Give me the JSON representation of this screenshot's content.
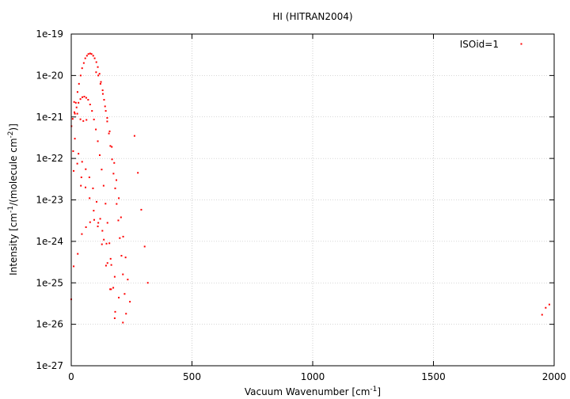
{
  "chart_data": {
    "type": "scatter",
    "title": "HI (HITRAN2004)",
    "xlabel": {
      "pre": "Vacuum Wavenumber [cm",
      "sup": "-1",
      "post": "]"
    },
    "ylabel": {
      "p1": "Intensity [cm",
      "s1": "-1",
      "p2": "/(molecule cm",
      "s2": "-2",
      "p3": ")]"
    },
    "xlim": [
      0,
      2000
    ],
    "ylim": [
      1e-27,
      1e-19
    ],
    "yscale": "log",
    "grid": true,
    "legend_position": "top-right",
    "x_ticks": [
      {
        "value": 0,
        "label": "0"
      },
      {
        "value": 500,
        "label": "500"
      },
      {
        "value": 1000,
        "label": "1000"
      },
      {
        "value": 1500,
        "label": "1500"
      },
      {
        "value": 2000,
        "label": "2000"
      }
    ],
    "y_ticks": [
      {
        "value": 1e-27,
        "label": "1e-27"
      },
      {
        "value": 1e-26,
        "label": "1e-26"
      },
      {
        "value": 1e-25,
        "label": "1e-25"
      },
      {
        "value": 1e-24,
        "label": "1e-24"
      },
      {
        "value": 1e-23,
        "label": "1e-23"
      },
      {
        "value": 1e-22,
        "label": "1e-22"
      },
      {
        "value": 1e-21,
        "label": "1e-21"
      },
      {
        "value": 1e-20,
        "label": "1e-20"
      },
      {
        "value": 1e-19,
        "label": "1e-19"
      }
    ],
    "series": [
      {
        "name": "ISOid=1",
        "color": "#ff0000",
        "points": [
          [
            0,
            4e-26
          ],
          [
            1,
            6e-22
          ],
          [
            6,
            9e-22
          ],
          [
            13,
            1.3e-21
          ],
          [
            19,
            2.2e-21
          ],
          [
            26,
            4e-21
          ],
          [
            32,
            6.3e-21
          ],
          [
            39,
            1e-20
          ],
          [
            45,
            1.5e-20
          ],
          [
            52,
            2e-20
          ],
          [
            58,
            2.6e-20
          ],
          [
            65,
            3e-20
          ],
          [
            71,
            3.3e-20
          ],
          [
            78,
            3.4e-20
          ],
          [
            84,
            3.3e-20
          ],
          [
            91,
            3e-20
          ],
          [
            97,
            2.6e-20
          ],
          [
            104,
            2.1e-20
          ],
          [
            110,
            1.6e-20
          ],
          [
            117,
            1.1e-20
          ],
          [
            123,
            7e-21
          ],
          [
            130,
            4.4e-21
          ],
          [
            136,
            2.6e-21
          ],
          [
            143,
            1.4e-21
          ],
          [
            149,
            7.8e-22
          ],
          [
            156,
            4e-22
          ],
          [
            162,
            2e-22
          ],
          [
            169,
            9.5e-23
          ],
          [
            175,
            4.3e-23
          ],
          [
            182,
            1.9e-23
          ],
          [
            188,
            8e-24
          ],
          [
            195,
            3.2e-24
          ],
          [
            201,
            1.2e-24
          ],
          [
            208,
            4.5e-25
          ],
          [
            214,
            1.6e-25
          ],
          [
            221,
            5.4e-26
          ],
          [
            227,
            1.8e-26
          ],
          [
            103,
            1.2e-20
          ],
          [
            112,
            1e-20
          ],
          [
            121,
            6.3e-21
          ],
          [
            131,
            3.6e-21
          ],
          [
            140,
            1.8e-21
          ],
          [
            149,
            9.5e-22
          ],
          [
            159,
            4.5e-22
          ],
          [
            168,
            1.9e-22
          ],
          [
            178,
            7.8e-23
          ],
          [
            187,
            3e-23
          ],
          [
            197,
            1.1e-23
          ],
          [
            206,
            3.8e-24
          ],
          [
            215,
            1.3e-24
          ],
          [
            225,
            4.1e-25
          ],
          [
            234,
            1.2e-25
          ],
          [
            243,
            3.5e-26
          ],
          [
            12,
            2.3e-21
          ],
          [
            25,
            1.2e-21
          ],
          [
            38,
            8.8e-22
          ],
          [
            50,
            8e-22
          ],
          [
            63,
            8.5e-22
          ],
          [
            15,
            3e-22
          ],
          [
            30,
            1.3e-22
          ],
          [
            45,
            8.3e-23
          ],
          [
            60,
            5.5e-23
          ],
          [
            75,
            3.5e-23
          ],
          [
            90,
            1.9e-23
          ],
          [
            105,
            9e-24
          ],
          [
            120,
            3.5e-24
          ],
          [
            135,
            1.1e-24
          ],
          [
            150,
            3e-25
          ],
          [
            165,
            7e-26
          ],
          [
            180,
            1.4e-26
          ],
          [
            15,
            1.2e-21
          ],
          [
            22,
            1.7e-21
          ],
          [
            30,
            2.2e-21
          ],
          [
            38,
            2.7e-21
          ],
          [
            46,
            3e-21
          ],
          [
            54,
            3.1e-21
          ],
          [
            62,
            2.9e-21
          ],
          [
            70,
            2.6e-21
          ],
          [
            78,
            2e-21
          ],
          [
            86,
            1.4e-21
          ],
          [
            94,
            8.7e-22
          ],
          [
            102,
            5e-22
          ],
          [
            110,
            2.6e-22
          ],
          [
            118,
            1.2e-22
          ],
          [
            126,
            5.4e-23
          ],
          [
            134,
            2.2e-23
          ],
          [
            142,
            8.1e-24
          ],
          [
            150,
            2.8e-24
          ],
          [
            158,
            9e-25
          ],
          [
            166,
            2.7e-25
          ],
          [
            174,
            7.6e-26
          ],
          [
            182,
            2e-26
          ],
          [
            8,
            1.5e-22
          ],
          [
            25,
            7.5e-23
          ],
          [
            42,
            3.5e-23
          ],
          [
            59,
            2e-23
          ],
          [
            76,
            1.1e-23
          ],
          [
            93,
            5.5e-24
          ],
          [
            110,
            2.3e-24
          ],
          [
            127,
            8.5e-25
          ],
          [
            144,
            2.6e-25
          ],
          [
            161,
            7e-26
          ],
          [
            10,
            5e-23
          ],
          [
            40,
            2.2e-23
          ],
          [
            10,
            2.5e-25
          ],
          [
            27,
            5e-25
          ],
          [
            44,
            1.5e-24
          ],
          [
            61,
            2.2e-24
          ],
          [
            78,
            2.9e-24
          ],
          [
            95,
            3.3e-24
          ],
          [
            112,
            2.8e-24
          ],
          [
            129,
            1.8e-24
          ],
          [
            146,
            8.8e-25
          ],
          [
            163,
            3.8e-25
          ],
          [
            180,
            1.4e-25
          ],
          [
            197,
            4.4e-26
          ],
          [
            214,
            1.1e-26
          ],
          [
            262,
            3.5e-22
          ],
          [
            276,
            4.5e-23
          ],
          [
            290,
            5.8e-24
          ],
          [
            304,
            7.5e-25
          ],
          [
            317,
            1e-25
          ],
          [
            1950,
            1.7e-26
          ],
          [
            1965,
            2.5e-26
          ],
          [
            1980,
            3e-26
          ]
        ]
      }
    ]
  }
}
